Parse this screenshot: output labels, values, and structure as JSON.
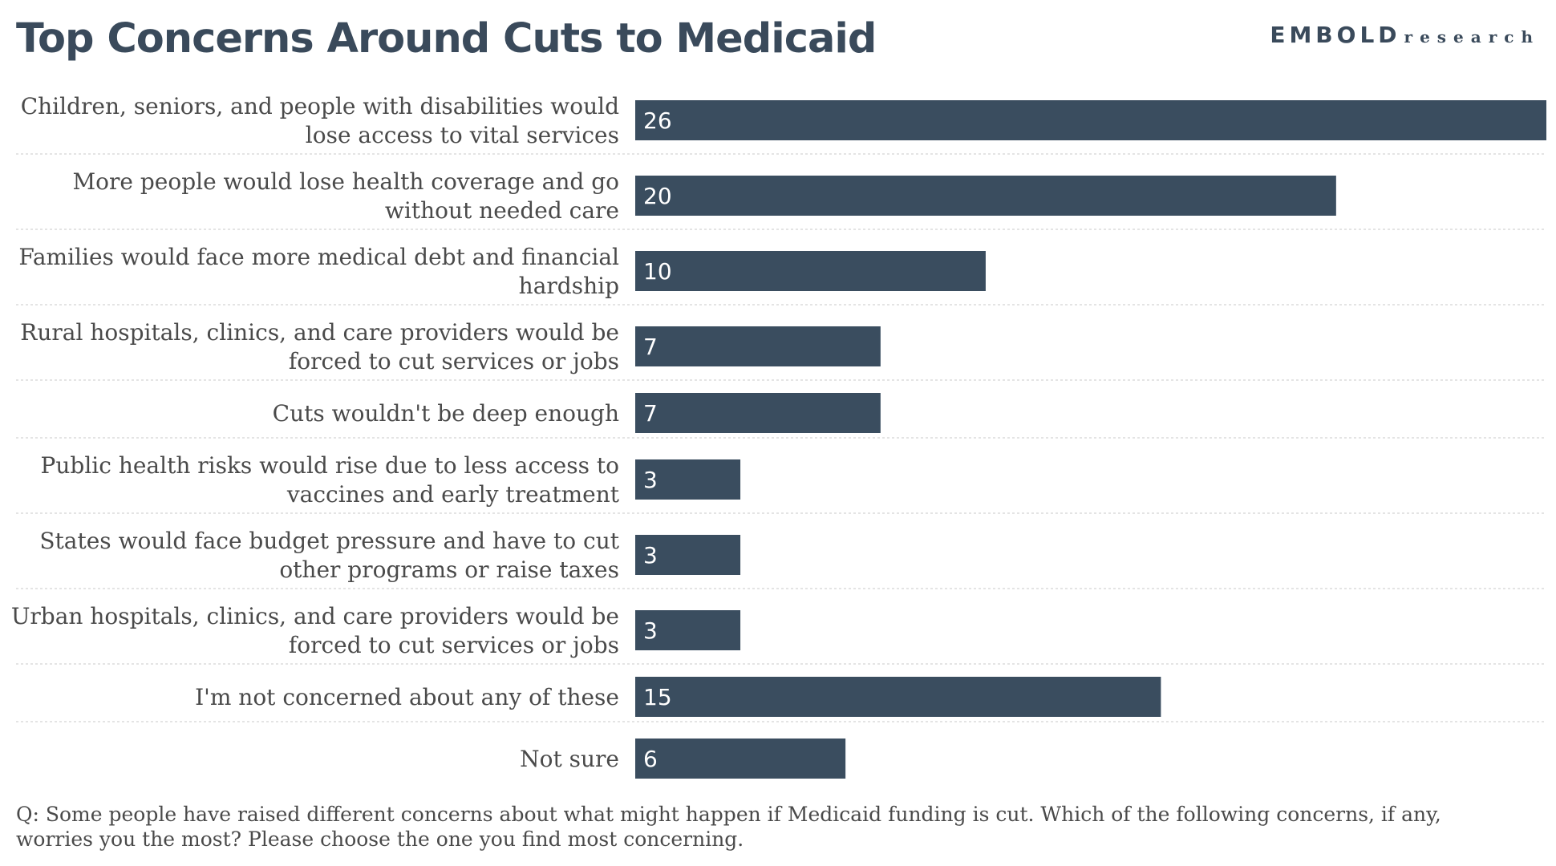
{
  "title": "Top Concerns Around Cuts to Medicaid",
  "logo": {
    "main": "EMBOLD",
    "sub": "research"
  },
  "footnote": "Q: Some people have raised different concerns about what might happen if Medicaid funding is cut. Which of the following concerns, if any, worries you the most? Please choose the one you find most concerning.",
  "colors": {
    "bar": "#3a4d5f",
    "title": "#3a4a5b",
    "text": "#4a4a4a",
    "gridline": "#c8c8c8"
  },
  "chart_data": {
    "type": "bar",
    "orientation": "horizontal",
    "title": "Top Concerns Around Cuts to Medicaid",
    "xlabel": "",
    "ylabel": "",
    "xlim": [
      0,
      26
    ],
    "categories": [
      [
        "Children, seniors, and people with disabilities would",
        "lose access to vital services"
      ],
      [
        "More people would lose health coverage and go",
        "without needed care"
      ],
      [
        "Families would face more medical debt and financial",
        "hardship"
      ],
      [
        "Rural hospitals, clinics, and care providers would be",
        "forced to cut services or jobs"
      ],
      [
        "Cuts wouldn't be deep enough"
      ],
      [
        "Public health risks would rise due to less access to",
        "vaccines and early treatment"
      ],
      [
        "States would face budget pressure and have to cut",
        "other programs or raise taxes"
      ],
      [
        "Urban hospitals, clinics, and care providers would be",
        "forced to cut services or jobs"
      ],
      [
        "I'm not concerned about any of these"
      ],
      [
        "Not sure"
      ]
    ],
    "values": [
      26,
      20,
      10,
      7,
      7,
      3,
      3,
      3,
      15,
      6
    ],
    "data_labels": [
      "26",
      "20",
      "10",
      "7",
      "7",
      "3",
      "3",
      "3",
      "15",
      "6"
    ]
  }
}
